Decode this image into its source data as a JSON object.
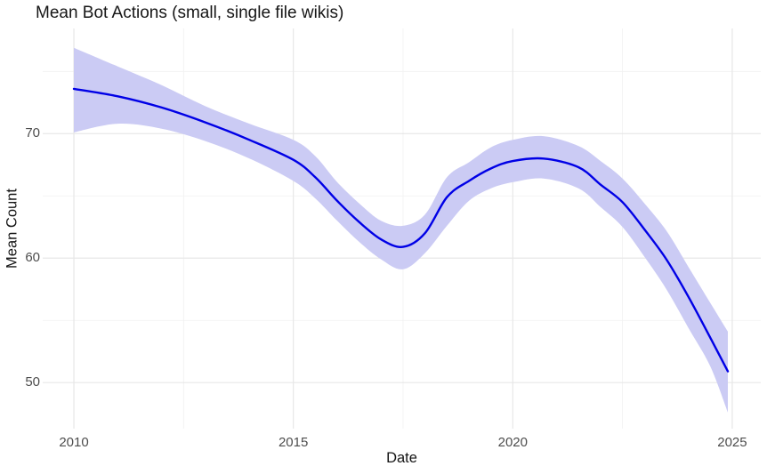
{
  "chart_data": {
    "type": "line",
    "title": "Mean Bot Actions (small, single file wikis)",
    "xlabel": "Date",
    "ylabel": "Mean Count",
    "xlim": [
      2009.29,
      2025.65
    ],
    "ylim": [
      46.3,
      78.45
    ],
    "grid": "major and minor gridlines, no axis lines or tick marks (ggplot minimal theme)",
    "legend": false,
    "x_ticks": {
      "values": [
        2010,
        2015,
        2020,
        2025
      ],
      "labels": [
        "2010",
        "2015",
        "2020",
        "2025"
      ],
      "minor": [
        2012.5,
        2017.5,
        2022.5
      ]
    },
    "y_ticks": {
      "values": [
        50,
        60,
        70
      ],
      "labels": [
        "50",
        "60",
        "70"
      ],
      "minor": [
        55,
        65,
        75
      ]
    },
    "series": [
      {
        "name": "smoothed mean bot action count",
        "x": [
          2010,
          2011,
          2012,
          2013,
          2014,
          2015,
          2015.5,
          2016,
          2016.5,
          2017,
          2017.5,
          2018,
          2018.5,
          2019,
          2019.5,
          2020,
          2020.7,
          2021.5,
          2022,
          2022.5,
          2023,
          2023.5,
          2024,
          2024.5,
          2024.9
        ],
        "y": [
          73.6,
          73.0,
          72.1,
          70.9,
          69.5,
          67.9,
          66.5,
          64.6,
          62.9,
          61.5,
          60.9,
          62.0,
          64.9,
          66.2,
          67.2,
          67.8,
          68.0,
          67.3,
          65.9,
          64.5,
          62.3,
          59.9,
          56.9,
          53.6,
          50.9
        ]
      }
    ],
    "confidence_band": {
      "name": "confidence interval ribbon",
      "x": [
        2010,
        2011,
        2012,
        2013,
        2014,
        2015,
        2015.5,
        2016,
        2016.5,
        2017,
        2017.5,
        2018,
        2018.5,
        2019,
        2019.5,
        2020,
        2020.7,
        2021.5,
        2022,
        2022.5,
        2023,
        2023.5,
        2024,
        2024.5,
        2024.9
      ],
      "upper": [
        76.9,
        75.4,
        73.9,
        72.2,
        70.8,
        69.5,
        68.2,
        66.1,
        64.4,
        63.0,
        62.6,
        63.5,
        66.5,
        67.7,
        68.9,
        69.5,
        69.8,
        69.0,
        67.8,
        66.4,
        64.4,
        62.2,
        59.3,
        56.4,
        54.1
      ],
      "lower": [
        70.1,
        70.8,
        70.4,
        69.4,
        68.0,
        66.2,
        64.8,
        63.0,
        61.3,
        59.9,
        59.1,
        60.4,
        62.6,
        64.6,
        65.6,
        66.1,
        66.4,
        65.6,
        64.1,
        62.5,
        60.1,
        57.5,
        54.4,
        51.3,
        47.6
      ]
    },
    "colors": {
      "line": "#0000e6",
      "band": "#cbcbf4",
      "grid_major": "#e7e7e7",
      "grid_minor": "#f1f1f1",
      "axis_text": "#4d4d4d",
      "title_text": "#161616"
    }
  }
}
